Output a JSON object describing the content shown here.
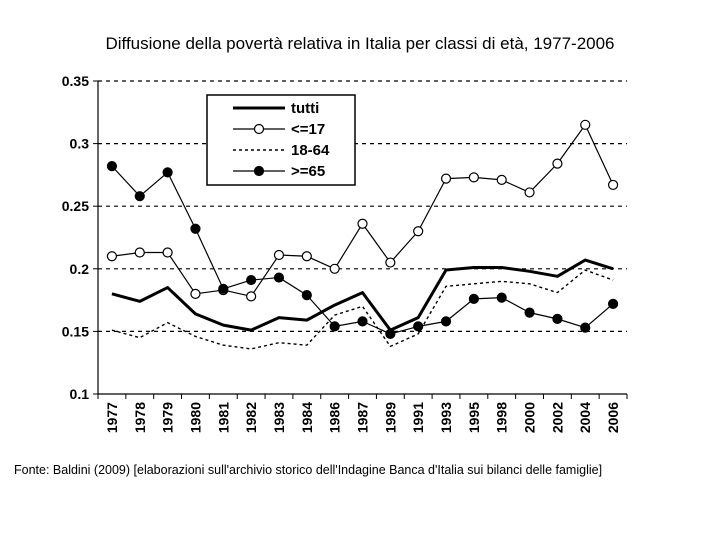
{
  "chart_data": {
    "type": "line",
    "title": "Diffusione della povertà relativa in Italia per classi di età, 1977-2006",
    "xlabel": "",
    "ylabel": "",
    "categories": [
      "1977",
      "1978",
      "1979",
      "1980",
      "1981",
      "1982",
      "1983",
      "1984",
      "1986",
      "1987",
      "1989",
      "1991",
      "1993",
      "1995",
      "1998",
      "2000",
      "2002",
      "2004",
      "2006"
    ],
    "ylim": [
      0.1,
      0.35
    ],
    "yticks": [
      0.1,
      0.15,
      0.2,
      0.25,
      0.3,
      0.35
    ],
    "ytick_labels": [
      "0.1",
      "0.15",
      "0.2",
      "0.25",
      "0.3",
      "0.35"
    ],
    "grid": "horizontal dashed",
    "legend_position": "top-left",
    "series": [
      {
        "name": "tutti",
        "style": "solid-thick",
        "values": [
          0.18,
          0.174,
          0.185,
          0.164,
          0.155,
          0.151,
          0.161,
          0.159,
          0.171,
          0.181,
          0.151,
          0.161,
          0.199,
          0.201,
          0.201,
          0.198,
          0.194,
          0.207,
          0.2
        ]
      },
      {
        "name": "<=17",
        "style": "thin-open-circle",
        "values": [
          0.21,
          0.213,
          0.213,
          0.18,
          0.183,
          0.178,
          0.211,
          0.21,
          0.2,
          0.236,
          0.205,
          0.23,
          0.272,
          0.273,
          0.271,
          0.261,
          0.284,
          0.315,
          0.267
        ]
      },
      {
        "name": "18-64",
        "style": "dotted",
        "values": [
          0.151,
          0.145,
          0.157,
          0.146,
          0.139,
          0.136,
          0.141,
          0.139,
          0.163,
          0.17,
          0.138,
          0.148,
          0.186,
          0.188,
          0.19,
          0.188,
          0.181,
          0.199,
          0.191
        ]
      },
      {
        "name": ">=65",
        "style": "thin-filled-circle",
        "values": [
          0.282,
          0.258,
          0.277,
          0.232,
          0.184,
          0.191,
          0.193,
          0.179,
          0.154,
          0.158,
          0.148,
          0.154,
          0.158,
          0.176,
          0.177,
          0.165,
          0.16,
          0.153,
          0.172
        ]
      }
    ]
  },
  "source_note": "Fonte: Baldini (2009) [elaborazioni sull'archivio storico dell'Indagine Banca d'Italia sui bilanci delle famiglie]"
}
